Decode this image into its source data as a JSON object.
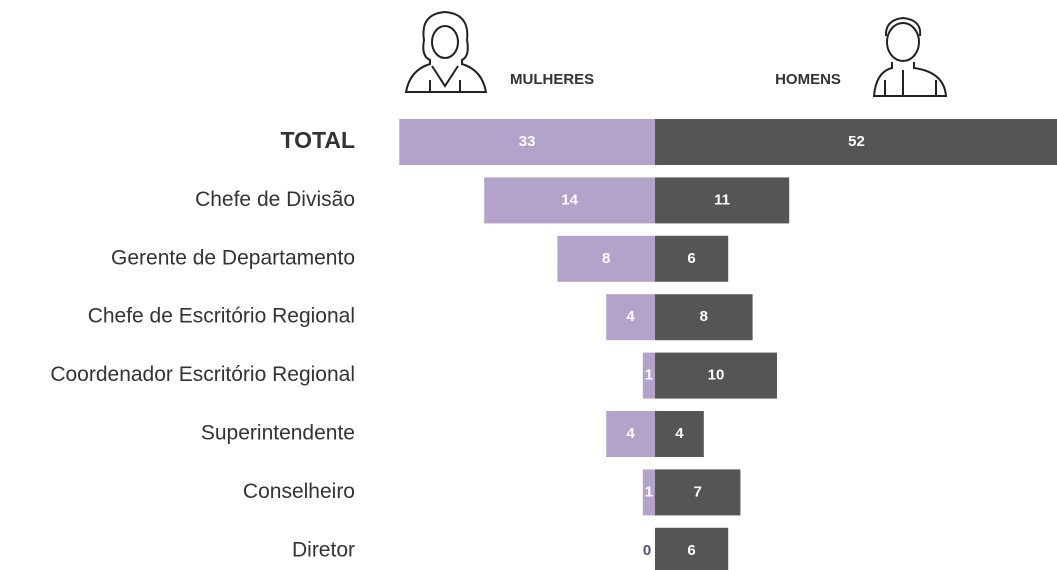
{
  "chart_data": {
    "type": "butterfly",
    "categories": [
      "TOTAL",
      "Chefe de Divisão",
      "Gerente de Departamento",
      "Chefe de Escritório Regional",
      "Coordenador Escritório Regional",
      "Superintendente",
      "Conselheiro",
      "Diretor"
    ],
    "series": [
      {
        "name": "MULHERES",
        "color": "#b3a2c9",
        "values": [
          33,
          14,
          8,
          4,
          1,
          4,
          1,
          0
        ]
      },
      {
        "name": "HOMENS",
        "color": "#555555",
        "values": [
          52,
          11,
          6,
          8,
          10,
          4,
          7,
          6
        ]
      }
    ]
  }
}
